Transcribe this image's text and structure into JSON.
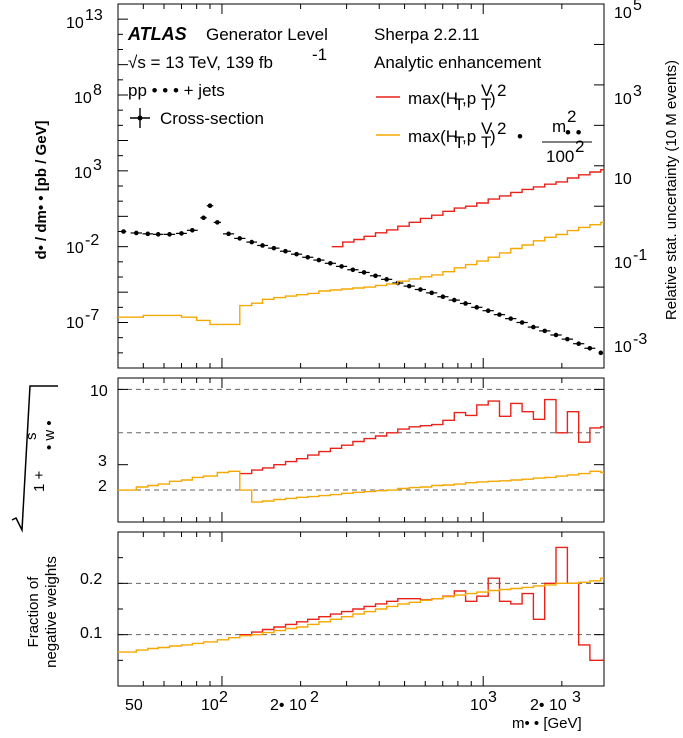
{
  "colors": {
    "red": "#e8231a",
    "orange": "#f5a800",
    "black": "#000000",
    "dashed": "#666666"
  },
  "legend": {
    "atlas": "ATLAS",
    "level": "Generator Level",
    "energy": "√s = 13 TeV, 139 fb",
    "energy_sup": "-1",
    "process": "pp • • • + jets",
    "xsec": "Cross-section",
    "sherpa": "Sherpa 2.2.11",
    "enhancement": "Analytic enhancement",
    "red_label": "max(H",
    "red_label_rest": "T",
    "red_label_p": ",p",
    "red_label_pt": "T",
    "red_label_v": "V",
    "red_label_close": ")",
    "red_label_sq": "2",
    "orange_label": "max(H",
    "orange_frac_num": "m",
    "orange_frac_num_sup": "2",
    "orange_frac_num_sub": "• •",
    "orange_frac_den": "100",
    "orange_frac_den_sup": "2",
    "orange_dot": "•"
  },
  "axes": {
    "top_ylabel": "d• / dm• • [pb / GeV]",
    "top_ylabel_right": "Relative stat. uncertainty (10 M events)",
    "mid_ylabel_1": "1 +",
    "mid_ylabel_num": "s",
    "mid_ylabel_num_sub": "w",
    "mid_ylabel_num_sup": "2",
    "mid_ylabel_den": "• w •",
    "mid_ylabel_den_sup": "2",
    "bot_ylabel_1": "Fraction of",
    "bot_ylabel_2": "negative weights",
    "xlabel": "m• • [GeV]",
    "top_left_ticks": [
      "10",
      "13",
      "10",
      "8",
      "10",
      "3",
      "10",
      "-2",
      "10",
      "-7"
    ],
    "top_right_ticks": [
      "10",
      "5",
      "10",
      "3",
      "10",
      "",
      "10",
      "-1",
      "10",
      "-3"
    ],
    "mid_ticks": [
      "10",
      "3",
      "2"
    ],
    "bot_ticks": [
      "0.2",
      "0.1"
    ],
    "x_ticks": [
      "50",
      "10",
      "2",
      "2• 10",
      "2",
      "10",
      "3",
      "2• 10",
      "3"
    ]
  },
  "chart_data": [
    {
      "type": "line",
      "panel": "top",
      "xlabel": "m• • [GeV]",
      "ylabel": "d• / dm• • [pb / GeV]",
      "ylabel_right": "Relative stat. uncertainty (10 M events)",
      "xlim": [
        40,
        2900
      ],
      "xscale": "log",
      "ylim": [
        1e-10,
        100000000000000.0
      ],
      "yscale": "log",
      "right_ylim": [
        0.0001,
        100000.0
      ],
      "right_yscale": "log",
      "series": [
        {
          "name": "Cross-section",
          "axis": "left",
          "color": "black",
          "x": [
            42,
            47,
            52,
            57,
            63,
            70,
            77,
            85,
            90,
            96,
            106,
            117,
            130,
            143,
            158,
            175,
            193,
            213,
            235,
            260,
            287,
            317,
            350,
            387,
            427,
            471,
            521,
            575,
            635,
            701,
            775,
            856,
            945,
            1045,
            1154,
            1275,
            1409,
            1556,
            1720,
            1900,
            2100,
            2320,
            2560,
            2820
          ],
          "y": [
            0.1,
            0.08,
            0.07,
            0.065,
            0.065,
            0.075,
            0.12,
            0.8,
            5.0,
            0.4,
            0.07,
            0.035,
            0.02,
            0.012,
            0.008,
            0.005,
            0.0032,
            0.002,
            0.0013,
            0.0008,
            0.0005,
            0.0003,
            0.0002,
            0.00012,
            7e-05,
            4e-05,
            2.5e-05,
            1.5e-05,
            9e-06,
            5e-06,
            3e-06,
            1.8e-06,
            1e-06,
            6e-07,
            3.3e-07,
            1.8e-07,
            1e-07,
            5e-08,
            2.8e-08,
            1.5e-08,
            8e-09,
            4e-09,
            2e-09,
            1e-09
          ]
        },
        {
          "name": "max(H_T,p_T^V)^2",
          "axis": "right",
          "color": "red",
          "x": [
            263,
            290,
            320,
            350,
            387,
            427,
            471,
            521,
            575,
            635,
            701,
            775,
            856,
            945,
            1045,
            1154,
            1275,
            1409,
            1556,
            1720,
            1900,
            2100,
            2320,
            2560,
            2820
          ],
          "y": [
            0.1,
            0.13,
            0.15,
            0.18,
            0.22,
            0.26,
            0.32,
            0.4,
            0.5,
            0.6,
            0.75,
            0.9,
            1.0,
            1.2,
            1.5,
            1.8,
            2.2,
            2.6,
            3.0,
            3.5,
            4.0,
            5.0,
            6.0,
            7.0,
            8.0
          ]
        },
        {
          "name": "max(H_T,p_T^V)^2 · m^2/100^2",
          "axis": "right",
          "color": "orange",
          "x": [
            40,
            50,
            60,
            70,
            80,
            90,
            106,
            117,
            130,
            143,
            158,
            175,
            193,
            213,
            235,
            260,
            287,
            317,
            350,
            387,
            427,
            471,
            521,
            575,
            635,
            701,
            775,
            856,
            945,
            1045,
            1154,
            1275,
            1409,
            1556,
            1720,
            1900,
            2100,
            2320,
            2560,
            2820
          ],
          "y": [
            0.0018,
            0.002,
            0.002,
            0.0018,
            0.0015,
            0.0012,
            0.0012,
            0.0035,
            0.004,
            0.005,
            0.0055,
            0.006,
            0.0065,
            0.007,
            0.008,
            0.0085,
            0.009,
            0.0095,
            0.01,
            0.011,
            0.012,
            0.014,
            0.016,
            0.018,
            0.02,
            0.024,
            0.03,
            0.036,
            0.044,
            0.055,
            0.07,
            0.09,
            0.11,
            0.14,
            0.17,
            0.2,
            0.25,
            0.3,
            0.35,
            0.4
          ]
        }
      ]
    },
    {
      "type": "line",
      "panel": "middle",
      "xlim": [
        40,
        2900
      ],
      "xscale": "log",
      "ylim": [
        1.2,
        12
      ],
      "yscale": "log",
      "reference_lines": [
        2,
        5,
        10
      ],
      "series": [
        {
          "name": "max(H_T,p_T^V)^2",
          "color": "red",
          "x": [
            117,
            130,
            143,
            158,
            175,
            193,
            213,
            235,
            260,
            287,
            317,
            350,
            387,
            427,
            471,
            521,
            575,
            635,
            701,
            775,
            856,
            945,
            1045,
            1154,
            1275,
            1409,
            1556,
            1720,
            1900,
            2100,
            2320,
            2560,
            2820
          ],
          "y": [
            2.6,
            2.75,
            2.85,
            3.0,
            3.15,
            3.3,
            3.5,
            3.7,
            3.9,
            4.1,
            4.35,
            4.55,
            4.75,
            5.0,
            5.3,
            5.5,
            5.6,
            5.7,
            6.1,
            6.9,
            6.6,
            7.8,
            8.3,
            6.5,
            8.0,
            7.0,
            6.2,
            8.5,
            5.0,
            7.0,
            4.3,
            5.4,
            5.5
          ]
        },
        {
          "name": "max(H_T,p_T^V)^2 · m^2/100^2",
          "color": "orange",
          "x": [
            40,
            47,
            52,
            57,
            63,
            70,
            77,
            85,
            96,
            106,
            117,
            130,
            143,
            158,
            175,
            193,
            213,
            235,
            260,
            287,
            317,
            350,
            387,
            427,
            471,
            521,
            575,
            635,
            701,
            775,
            856,
            945,
            1045,
            1154,
            1275,
            1409,
            1556,
            1720,
            1900,
            2100,
            2320,
            2560,
            2820
          ],
          "y": [
            2.0,
            2.1,
            2.15,
            2.2,
            2.3,
            2.35,
            2.45,
            2.5,
            2.65,
            2.7,
            2.0,
            1.65,
            1.68,
            1.72,
            1.75,
            1.78,
            1.8,
            1.83,
            1.86,
            1.9,
            1.93,
            1.95,
            1.98,
            2.0,
            2.05,
            2.08,
            2.1,
            2.15,
            2.17,
            2.2,
            2.25,
            2.28,
            2.3,
            2.32,
            2.35,
            2.38,
            2.42,
            2.45,
            2.5,
            2.55,
            2.6,
            2.7,
            2.65
          ]
        }
      ]
    },
    {
      "type": "line",
      "panel": "bottom",
      "ylabel": "Fraction of negative weights",
      "xlabel": "m• • [GeV]",
      "xlim": [
        40,
        2900
      ],
      "xscale": "log",
      "ylim": [
        0.0,
        0.3
      ],
      "reference_lines": [
        0.1,
        0.2
      ],
      "series": [
        {
          "name": "max(H_T,p_T^V)^2",
          "color": "red",
          "x": [
            117,
            130,
            143,
            158,
            175,
            193,
            213,
            235,
            260,
            287,
            317,
            350,
            387,
            427,
            471,
            521,
            575,
            635,
            701,
            775,
            856,
            945,
            1045,
            1154,
            1275,
            1409,
            1556,
            1720,
            1900,
            2100,
            2320,
            2560,
            2820
          ],
          "y": [
            0.1,
            0.105,
            0.11,
            0.115,
            0.12,
            0.125,
            0.13,
            0.135,
            0.14,
            0.145,
            0.15,
            0.155,
            0.16,
            0.165,
            0.17,
            0.17,
            0.168,
            0.17,
            0.175,
            0.185,
            0.165,
            0.175,
            0.21,
            0.165,
            0.16,
            0.18,
            0.13,
            0.2,
            0.27,
            0.2,
            0.08,
            0.05,
            0.05
          ]
        },
        {
          "name": "max(H_T,p_T^V)^2 · m^2/100^2",
          "color": "orange",
          "x": [
            40,
            47,
            52,
            57,
            63,
            70,
            77,
            85,
            96,
            106,
            117,
            130,
            143,
            158,
            175,
            193,
            213,
            235,
            260,
            287,
            317,
            350,
            387,
            427,
            471,
            521,
            575,
            635,
            701,
            775,
            856,
            945,
            1045,
            1154,
            1275,
            1409,
            1556,
            1720,
            1900,
            2100,
            2320,
            2560,
            2820
          ],
          "y": [
            0.066,
            0.07,
            0.073,
            0.075,
            0.078,
            0.08,
            0.083,
            0.086,
            0.09,
            0.094,
            0.098,
            0.1,
            0.104,
            0.108,
            0.112,
            0.115,
            0.12,
            0.125,
            0.13,
            0.135,
            0.14,
            0.145,
            0.15,
            0.155,
            0.16,
            0.163,
            0.167,
            0.17,
            0.174,
            0.177,
            0.18,
            0.183,
            0.186,
            0.188,
            0.19,
            0.192,
            0.195,
            0.197,
            0.2,
            0.2,
            0.202,
            0.205,
            0.21
          ]
        }
      ]
    }
  ]
}
